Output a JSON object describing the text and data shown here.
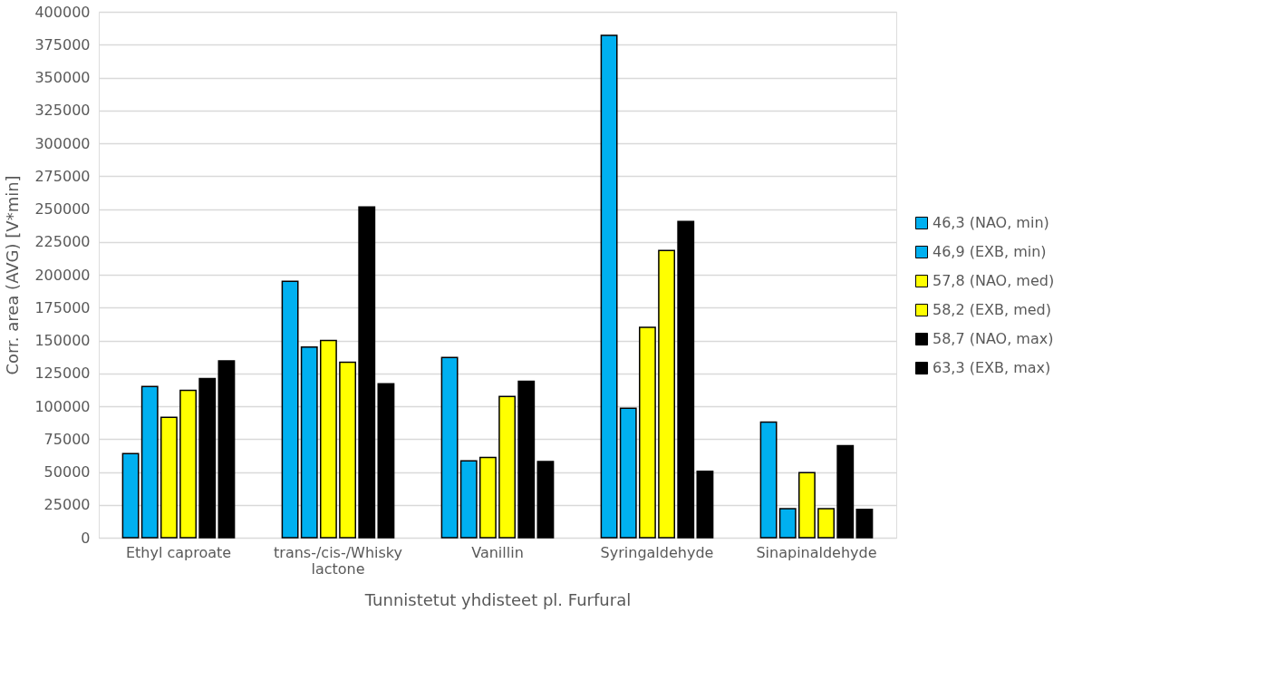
{
  "chart_data": {
    "type": "bar",
    "xlabel": "Tunnistetut yhdisteet pl. Furfural",
    "ylabel": "Corr. area (AVG) [V*min]",
    "categories": [
      "Ethyl caproate",
      "trans-/cis-/Whisky lactone",
      "Vanillin",
      "Syringaldehyde",
      "Sinapinaldehyde"
    ],
    "series": [
      {
        "name": "46,3 (NAO, min)",
        "color": "#00b0f0",
        "values": [
          64000,
          195000,
          137000,
          382000,
          88000
        ]
      },
      {
        "name": "46,9 (EXB, min)",
        "color": "#00b0f0",
        "values": [
          115000,
          145000,
          58500,
          98500,
          22000
        ]
      },
      {
        "name": "57,8 (NAO, med)",
        "color": "#ffff00",
        "values": [
          91500,
          150000,
          61000,
          160000,
          49500
        ]
      },
      {
        "name": "58,2 (EXB, med)",
        "color": "#ffff00",
        "values": [
          112000,
          133500,
          107500,
          218500,
          22000
        ]
      },
      {
        "name": "58,7 (NAO, max)",
        "color": "#000000",
        "values": [
          121000,
          251500,
          119000,
          240500,
          70000
        ]
      },
      {
        "name": "63,3 (EXB, max)",
        "color": "#000000",
        "values": [
          134500,
          117000,
          58000,
          50500,
          21500
        ]
      }
    ],
    "ylim": [
      0,
      400000
    ],
    "yticks": [
      0,
      25000,
      50000,
      75000,
      100000,
      125000,
      150000,
      175000,
      200000,
      225000,
      250000,
      275000,
      300000,
      325000,
      350000,
      375000,
      400000
    ],
    "grid": "y",
    "legend": "right"
  }
}
